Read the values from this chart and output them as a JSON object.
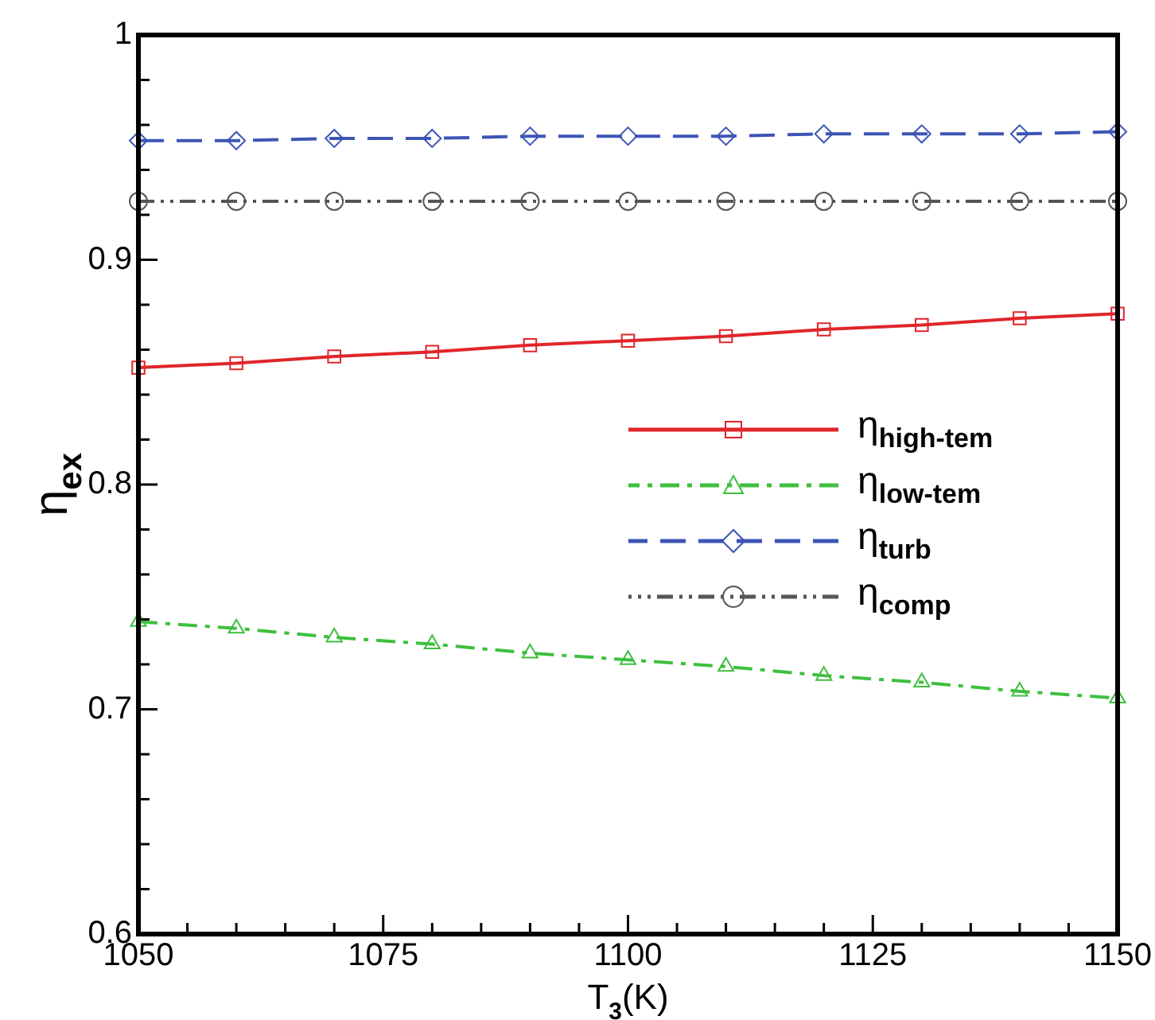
{
  "chart_data": {
    "type": "line",
    "xlabel": "T$_{3}$(K)",
    "ylabel": "η$_{ex}$",
    "x": [
      1050,
      1060,
      1070,
      1080,
      1090,
      1100,
      1110,
      1120,
      1130,
      1140,
      1150
    ],
    "series": [
      {
        "name": "η$_{high-tem}$",
        "color": "#e0262b",
        "marker": "square",
        "line_style": "solid",
        "values": [
          0.852,
          0.854,
          0.857,
          0.859,
          0.862,
          0.864,
          0.866,
          0.869,
          0.871,
          0.874,
          0.876
        ]
      },
      {
        "name": "η$_{low-tem}$",
        "color": "#3fbf3f",
        "marker": "triangle",
        "line_style": "dashdot",
        "values": [
          0.739,
          0.736,
          0.732,
          0.729,
          0.725,
          0.722,
          0.719,
          0.715,
          0.712,
          0.708,
          0.705
        ]
      },
      {
        "name": "η$_{turb}$",
        "color": "#3d55b5",
        "marker": "diamond",
        "line_style": "dashed",
        "values": [
          0.953,
          0.953,
          0.954,
          0.954,
          0.955,
          0.955,
          0.955,
          0.956,
          0.956,
          0.956,
          0.957
        ]
      },
      {
        "name": "η$_{comp}$",
        "color": "#555555",
        "marker": "circle",
        "line_style": "dashdotdot",
        "values": [
          0.926,
          0.926,
          0.926,
          0.926,
          0.926,
          0.926,
          0.926,
          0.926,
          0.926,
          0.926,
          0.926
        ]
      }
    ],
    "xlim": [
      1050,
      1150
    ],
    "xticks": [
      1050,
      {
        "value": 1055,
        "label": null
      },
      {
        "value": 1060,
        "label": null
      },
      {
        "value": 1065,
        "label": null
      },
      {
        "value": 1070,
        "label": null
      },
      1075,
      {
        "value": 1080,
        "label": null
      },
      {
        "value": 1085,
        "label": null
      },
      {
        "value": 1090,
        "label": null
      },
      {
        "value": 1095,
        "label": null
      },
      1100,
      {
        "value": 1105,
        "label": null
      },
      {
        "value": 1110,
        "label": null
      },
      {
        "value": 1115,
        "label": null
      },
      {
        "value": 1120,
        "label": null
      },
      1125,
      {
        "value": 1130,
        "label": null
      },
      {
        "value": 1135,
        "label": null
      },
      {
        "value": 1140,
        "label": null
      },
      {
        "value": 1145,
        "label": null
      },
      1150
    ],
    "ylim": [
      0.6,
      1
    ],
    "yticks": [
      0.6,
      {
        "value": 0.62,
        "label": null
      },
      {
        "value": 0.64,
        "label": null
      },
      {
        "value": 0.66,
        "label": null
      },
      {
        "value": 0.68,
        "label": null
      },
      0.7,
      {
        "value": 0.72,
        "label": null
      },
      {
        "value": 0.74,
        "label": null
      },
      {
        "value": 0.76,
        "label": null
      },
      {
        "value": 0.78,
        "label": null
      },
      0.8,
      {
        "value": 0.82,
        "label": null
      },
      {
        "value": 0.84,
        "label": null
      },
      {
        "value": 0.86,
        "label": null
      },
      {
        "value": 0.88,
        "label": null
      },
      0.9,
      {
        "value": 0.92,
        "label": null
      },
      {
        "value": 0.94,
        "label": null
      },
      {
        "value": 0.96,
        "label": null
      },
      {
        "value": 0.98,
        "label": null
      },
      1
    ],
    "grid": false,
    "legend": "right"
  }
}
